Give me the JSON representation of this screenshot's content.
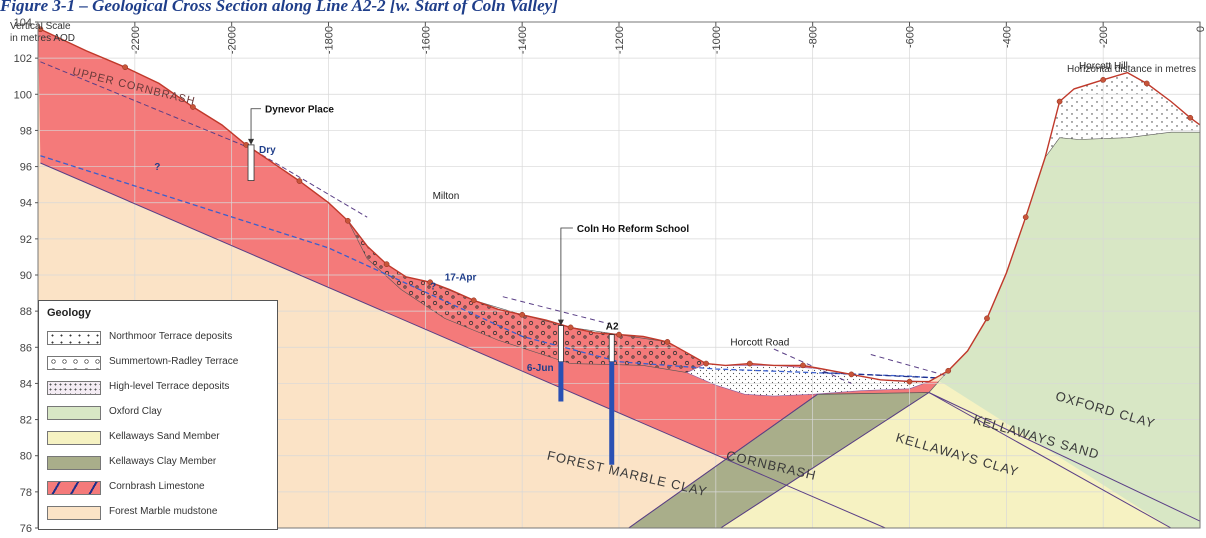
{
  "figure": {
    "title": "Figure 3-1 – Geological Cross Section along Line A2-2 [w. Start of Coln Valley]"
  },
  "chart_data": {
    "type": "cross-section",
    "y_axis_label_line1": "Vertical Scale",
    "y_axis_label_line2": "in metres AOD",
    "x_axis_label": "Horizontal distance in metres",
    "xlim": [
      -2400,
      0
    ],
    "ylim": [
      76,
      104
    ],
    "x_ticks": [
      "-2200",
      "-2000",
      "-1800",
      "-1600",
      "-1400",
      "-1200",
      "-1000",
      "-800",
      "-600",
      "-400",
      "-200",
      "0"
    ],
    "x_tick_values": [
      -2200,
      -2000,
      -1800,
      -1600,
      -1400,
      -1200,
      -1000,
      -800,
      -600,
      -400,
      -200,
      0
    ],
    "y_ticks": [
      "76",
      "78",
      "80",
      "82",
      "84",
      "86",
      "88",
      "90",
      "92",
      "94",
      "96",
      "98",
      "100",
      "102",
      "104"
    ],
    "y_tick_values": [
      76,
      78,
      80,
      82,
      84,
      86,
      88,
      90,
      92,
      94,
      96,
      98,
      100,
      102,
      104
    ],
    "ground_profile": [
      [
        -2395,
        103.6
      ],
      [
        -2300,
        102.4
      ],
      [
        -2220,
        101.5
      ],
      [
        -2150,
        100.6
      ],
      [
        -2080,
        99.3
      ],
      [
        -2020,
        98.3
      ],
      [
        -1970,
        97.2
      ],
      [
        -1920,
        96.3
      ],
      [
        -1860,
        95.2
      ],
      [
        -1800,
        94.0
      ],
      [
        -1760,
        93.0
      ],
      [
        -1720,
        91.6
      ],
      [
        -1680,
        90.6
      ],
      [
        -1640,
        89.9
      ],
      [
        -1590,
        89.6
      ],
      [
        -1550,
        89.2
      ],
      [
        -1500,
        88.6
      ],
      [
        -1450,
        88.1
      ],
      [
        -1400,
        87.8
      ],
      [
        -1350,
        87.5
      ],
      [
        -1300,
        87.1
      ],
      [
        -1250,
        86.8
      ],
      [
        -1200,
        86.7
      ],
      [
        -1150,
        86.6
      ],
      [
        -1100,
        86.3
      ],
      [
        -1060,
        85.7
      ],
      [
        -1020,
        85.1
      ],
      [
        -980,
        85.0
      ],
      [
        -930,
        85.1
      ],
      [
        -880,
        85.0
      ],
      [
        -820,
        85.0
      ],
      [
        -780,
        84.8
      ],
      [
        -720,
        84.5
      ],
      [
        -660,
        84.2
      ],
      [
        -600,
        84.1
      ],
      [
        -560,
        84.1
      ],
      [
        -520,
        84.7
      ],
      [
        -480,
        85.8
      ],
      [
        -440,
        87.6
      ],
      [
        -400,
        90.1
      ],
      [
        -360,
        93.2
      ],
      [
        -320,
        96.5
      ],
      [
        -290,
        99.6
      ],
      [
        -260,
        100.3
      ],
      [
        -200,
        100.8
      ],
      [
        -150,
        101.2
      ],
      [
        -110,
        100.6
      ],
      [
        -60,
        99.6
      ],
      [
        -20,
        98.7
      ],
      [
        0,
        98.3
      ]
    ],
    "upper_cornbrash_line": [
      [
        -2395,
        101.8
      ],
      [
        -1960,
        97.0
      ],
      [
        -1720,
        93.2
      ]
    ],
    "water_table": [
      [
        -2395,
        96.6
      ],
      [
        -1800,
        91.5
      ],
      [
        -1400,
        86.6
      ],
      [
        -1200,
        85.2
      ],
      [
        -1000,
        84.8
      ],
      [
        -800,
        84.6
      ],
      [
        -600,
        84.4
      ],
      [
        -540,
        84.3
      ]
    ],
    "boreholes": [
      {
        "name": "Dynevor Place",
        "x": -1960,
        "top": 97.2,
        "bottom": 96.0,
        "water_label": "Dry"
      },
      {
        "name": "Coln Ho Reform School",
        "x": -1320,
        "top": 87.2,
        "bottom": 83.0,
        "water_label": "6-Jun"
      },
      {
        "name": "A2",
        "x": -1215,
        "top": 86.7,
        "bottom": 79.5,
        "water_label": ""
      }
    ],
    "annotations": [
      {
        "text": "Milton",
        "x": -1585,
        "y": 94.2
      },
      {
        "text": "17-Apr",
        "x": -1560,
        "y": 89.7
      },
      {
        "text": "Horcott Road",
        "x": -970,
        "y": 86.1
      },
      {
        "text": "Horcott Hill",
        "x": -250,
        "y": 101.4
      },
      {
        "text": "?",
        "x": -2160,
        "y": 95.8
      },
      {
        "text": "?",
        "x": -1590,
        "y": 89.2
      }
    ],
    "strata_labels": [
      {
        "text": "UPPER CORNBRASH",
        "x": -2330,
        "y": 101.1,
        "angle": 14
      },
      {
        "text": "FOREST MARBLE CLAY",
        "x": -1350,
        "y": 79.8,
        "angle": 13
      },
      {
        "text": "CORNBRASH",
        "x": -980,
        "y": 79.8,
        "angle": 13
      },
      {
        "text": "KELLAWAYS CLAY",
        "x": -630,
        "y": 80.8,
        "angle": 16
      },
      {
        "text": "KELLAWAYS SAND",
        "x": -470,
        "y": 81.8,
        "angle": 16
      },
      {
        "text": "OXFORD CLAY",
        "x": -300,
        "y": 83.1,
        "angle": 16
      }
    ]
  },
  "legend": {
    "title": "Geology",
    "items": [
      {
        "label": "Northmoor Terrace deposits",
        "fill": "#ffffff",
        "pattern": "dots-sparse"
      },
      {
        "label": "Summertown-Radley Terrace",
        "fill": "#ffffff",
        "pattern": "circles"
      },
      {
        "label": "High-level Terrace deposits",
        "fill": "#f4ecf4",
        "pattern": "dots-dense"
      },
      {
        "label": "Oxford Clay",
        "fill": "#d8e7c5",
        "pattern": "none"
      },
      {
        "label": "Kellaways Sand Member",
        "fill": "#f6f2c2",
        "pattern": "none"
      },
      {
        "label": "Kellaways Clay Member",
        "fill": "#a9ae8a",
        "pattern": "none"
      },
      {
        "label": "Cornbrash Limestone",
        "fill": "#f47a7a",
        "pattern": "dash"
      },
      {
        "label": "Forest Marble mudstone",
        "fill": "#fbe3c6",
        "pattern": "none"
      }
    ]
  },
  "colors": {
    "forest_marble": "#fbe3c6",
    "cornbrash": "#f47a7a",
    "kellaways_clay": "#a9ae8a",
    "kellaways_sand": "#f6f2c2",
    "oxford_clay": "#d8e7c5",
    "terrace": "#ffffff",
    "ground_line": "#c0392b",
    "water_table": "#3a5fcd",
    "borehole": "#2850b4",
    "grid": "#d8d8d8",
    "title": "#1f3e8a"
  }
}
